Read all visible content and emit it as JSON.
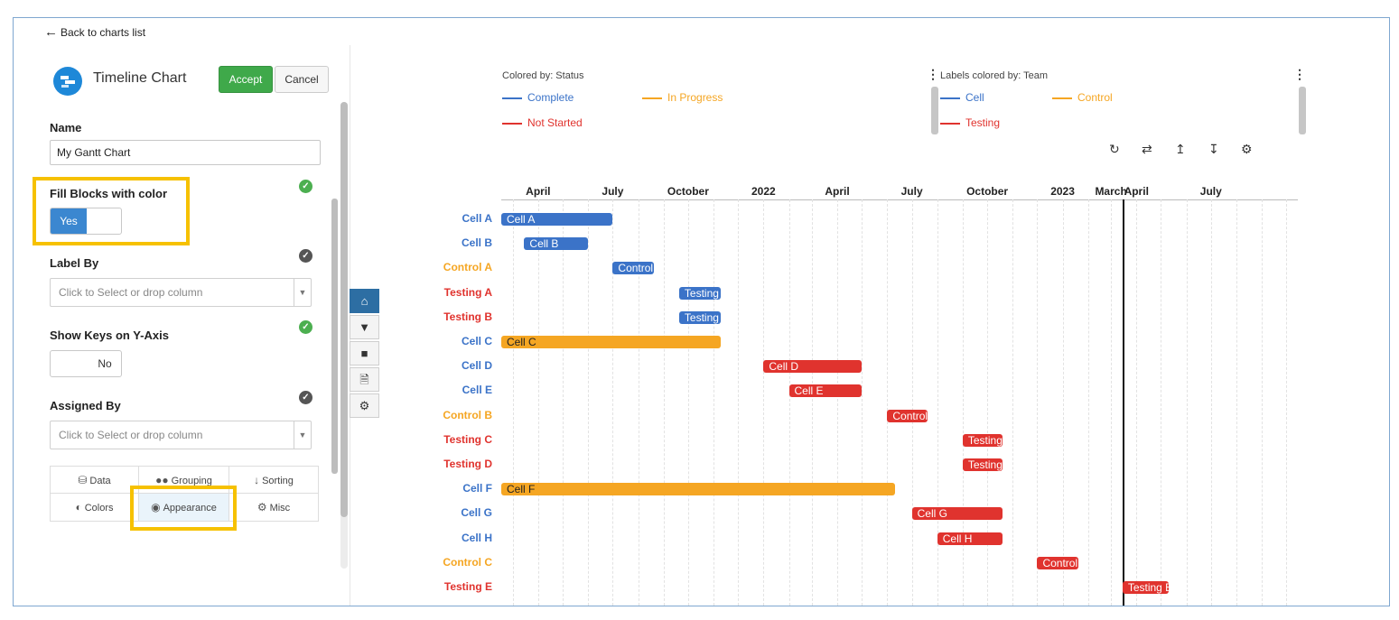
{
  "nav": {
    "back_label": "Back to charts list"
  },
  "editor": {
    "title": "Timeline Chart",
    "accept_label": "Accept",
    "cancel_label": "Cancel",
    "name": {
      "label": "Name",
      "value": "My Gantt Chart"
    },
    "fill_blocks": {
      "label": "Fill Blocks with color",
      "value": "Yes"
    },
    "label_by": {
      "label": "Label By",
      "placeholder": "Click to Select or drop column"
    },
    "show_keys": {
      "label": "Show Keys on Y-Axis",
      "value": "No"
    },
    "assigned_by": {
      "label": "Assigned By",
      "placeholder": "Click to Select or drop column"
    },
    "tabs": [
      {
        "label": "Data",
        "icon": "database-icon"
      },
      {
        "label": "Grouping",
        "icon": "users-icon"
      },
      {
        "label": "Sorting",
        "icon": "sort-icon"
      },
      {
        "label": "Colors",
        "icon": "contrast-icon"
      },
      {
        "label": "Appearance",
        "icon": "eye-icon",
        "active": true
      },
      {
        "label": "Misc",
        "icon": "gear-icon"
      }
    ]
  },
  "legends": {
    "status": {
      "title": "Colored by: Status",
      "items": [
        {
          "label": "Complete",
          "color": "#3b73c8"
        },
        {
          "label": "In Progress",
          "color": "#f5a623"
        },
        {
          "label": "Not Started",
          "color": "#e0332e"
        }
      ]
    },
    "team": {
      "title": "Labels colored by: Team",
      "items": [
        {
          "label": "Cell",
          "color": "#3b73c8"
        },
        {
          "label": "Control",
          "color": "#f5a623"
        },
        {
          "label": "Testing",
          "color": "#e0332e"
        }
      ]
    }
  },
  "chart_data": {
    "type": "timeline",
    "x_ticks": [
      "April",
      "July",
      "October",
      "2022",
      "April",
      "July",
      "October",
      "2023",
      "March",
      "April",
      "July"
    ],
    "x_tick_dates": [
      "2021-04-01",
      "2021-07-01",
      "2021-10-01",
      "2022-01-01",
      "2022-04-01",
      "2022-07-01",
      "2022-10-01",
      "2023-01-01",
      "2023-03-01",
      "2023-04-01",
      "2023-07-01"
    ],
    "x_range": [
      "2021-02-15",
      "2023-10-15"
    ],
    "marker_line": "2023-03-15",
    "rows": [
      {
        "key": "Cell A",
        "team": "Cell",
        "label": "Cell A",
        "status": "Complete",
        "start": "2021-02-15",
        "end": "2021-07-01"
      },
      {
        "key": "Cell B",
        "team": "Cell",
        "label": "Cell B",
        "status": "Complete",
        "start": "2021-03-15",
        "end": "2021-06-01"
      },
      {
        "key": "Control A",
        "team": "Control",
        "label": "Control A",
        "status": "Complete",
        "start": "2021-07-01",
        "end": "2021-08-20"
      },
      {
        "key": "Testing A",
        "team": "Testing",
        "label": "Testing A",
        "status": "Complete",
        "start": "2021-09-20",
        "end": "2021-11-10"
      },
      {
        "key": "Testing B",
        "team": "Testing",
        "label": "Testing B",
        "status": "Complete",
        "start": "2021-09-20",
        "end": "2021-11-10"
      },
      {
        "key": "Cell C",
        "team": "Cell",
        "label": "Cell C",
        "status": "In Progress",
        "start": "2021-02-15",
        "end": "2021-11-10"
      },
      {
        "key": "Cell D",
        "team": "Cell",
        "label": "Cell D",
        "status": "Not Started",
        "start": "2022-01-01",
        "end": "2022-05-01"
      },
      {
        "key": "Cell E",
        "team": "Cell",
        "label": "Cell E",
        "status": "Not Started",
        "start": "2022-02-01",
        "end": "2022-05-01"
      },
      {
        "key": "Control B",
        "team": "Control",
        "label": "Control B",
        "status": "Not Started",
        "start": "2022-06-01",
        "end": "2022-07-20"
      },
      {
        "key": "Testing C",
        "team": "Testing",
        "label": "Testing C",
        "status": "Not Started",
        "start": "2022-09-01",
        "end": "2022-10-20"
      },
      {
        "key": "Testing D",
        "team": "Testing",
        "label": "Testing D",
        "status": "Not Started",
        "start": "2022-09-01",
        "end": "2022-10-20"
      },
      {
        "key": "Cell F",
        "team": "Cell",
        "label": "Cell F",
        "status": "In Progress",
        "start": "2021-02-15",
        "end": "2022-06-10"
      },
      {
        "key": "Cell G",
        "team": "Cell",
        "label": "Cell G",
        "status": "Not Started",
        "start": "2022-07-01",
        "end": "2022-10-20"
      },
      {
        "key": "Cell H",
        "team": "Cell",
        "label": "Cell H",
        "status": "Not Started",
        "start": "2022-08-01",
        "end": "2022-10-20"
      },
      {
        "key": "Control C",
        "team": "Control",
        "label": "Control C",
        "status": "Not Started",
        "start": "2022-12-01",
        "end": "2023-01-20"
      },
      {
        "key": "Testing E",
        "team": "Testing",
        "label": "Testing E",
        "status": "Not Started",
        "start": "2023-03-15",
        "end": "2023-05-10"
      }
    ]
  }
}
